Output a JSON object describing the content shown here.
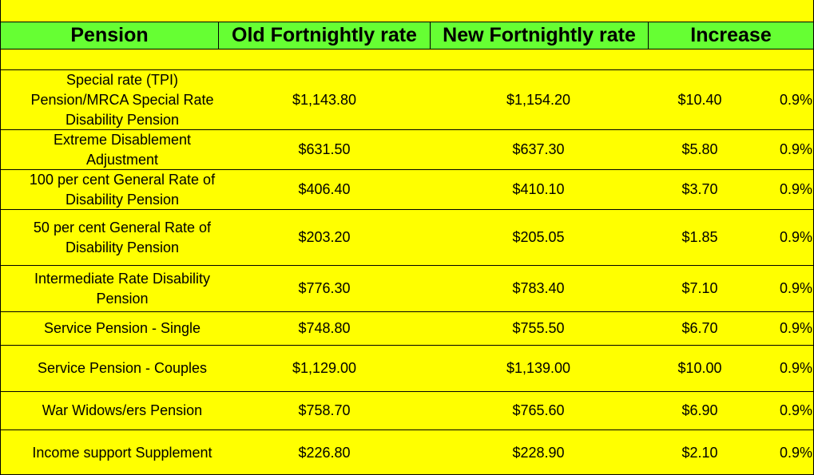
{
  "table": {
    "headers": {
      "pension": "Pension",
      "old_rate": "Old Fortnightly rate",
      "new_rate": "New Fortnightly rate",
      "increase": "Increase"
    },
    "rows": [
      {
        "pension": "Special rate (TPI) Pension/MRCA Special Rate Disability Pension",
        "old": "$1,143.80",
        "new": "$1,154.20",
        "increase": "$10.40",
        "pct": "0.9%"
      },
      {
        "pension": "Extreme Disablement Adjustment",
        "old": "$631.50",
        "new": "$637.30",
        "increase": "$5.80",
        "pct": "0.9%"
      },
      {
        "pension": "100 per cent General Rate of Disability Pension",
        "old": "$406.40",
        "new": "$410.10",
        "increase": "$3.70",
        "pct": "0.9%"
      },
      {
        "pension": "50 per cent General Rate of Disability Pension",
        "old": "$203.20",
        "new": "$205.05",
        "increase": "$1.85",
        "pct": "0.9%"
      },
      {
        "pension": "Intermediate Rate Disability Pension",
        "old": "$776.30",
        "new": "$783.40",
        "increase": "$7.10",
        "pct": "0.9%"
      },
      {
        "pension": "Service Pension - Single",
        "old": "$748.80",
        "new": "$755.50",
        "increase": "$6.70",
        "pct": "0.9%"
      },
      {
        "pension": "Service Pension - Couples",
        "old": "$1,129.00",
        "new": "$1,139.00",
        "increase": "$10.00",
        "pct": "0.9%"
      },
      {
        "pension": "War Widows/ers Pension",
        "old": "$758.70",
        "new": "$765.60",
        "increase": "$6.90",
        "pct": "0.9%"
      },
      {
        "pension": "Income support Supplement",
        "old": "$226.80",
        "new": "$228.90",
        "increase": "$2.10",
        "pct": "0.9%"
      }
    ]
  },
  "colors": {
    "background": "#ffff00",
    "header": "#66ff33"
  }
}
